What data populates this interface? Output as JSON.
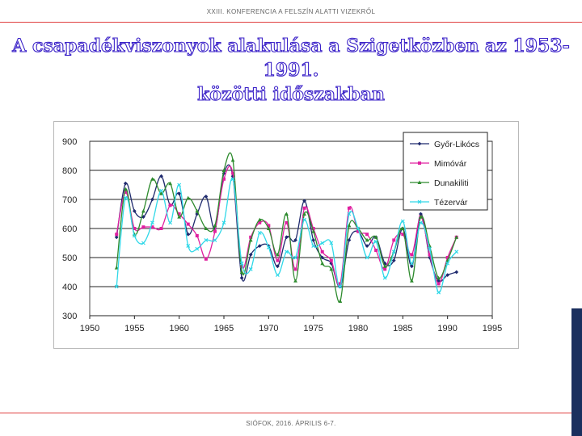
{
  "header": {
    "text": "XXIII. KONFERENCIA A FELSZÍN ALATTI VIZEKRŐL"
  },
  "title": {
    "line1": "A csapadékviszonyok alakulása a Szigetközben az 1953-1991.",
    "line2": "közötti időszakban"
  },
  "footer": {
    "text": "SIÓFOK, 2016. ÁPRILIS 6-7."
  },
  "chart_data": {
    "type": "line",
    "x": [
      1953,
      1954,
      1955,
      1956,
      1957,
      1958,
      1959,
      1960,
      1961,
      1962,
      1963,
      1964,
      1965,
      1966,
      1967,
      1968,
      1969,
      1970,
      1971,
      1972,
      1973,
      1974,
      1975,
      1976,
      1977,
      1978,
      1979,
      1980,
      1981,
      1982,
      1983,
      1984,
      1985,
      1986,
      1987,
      1988,
      1989,
      1990,
      1991
    ],
    "xlim": [
      1950,
      1995
    ],
    "ylim": [
      300,
      900
    ],
    "xticks": [
      1950,
      1955,
      1960,
      1965,
      1970,
      1975,
      1980,
      1985,
      1990,
      1995
    ],
    "yticks": [
      300,
      400,
      500,
      600,
      700,
      800,
      900
    ],
    "grid": "horizontal",
    "legend": "top-right",
    "series": [
      {
        "name": "Győr-Likócs",
        "color": "#1f2a6e",
        "marker": "diamond",
        "values": [
          570,
          755,
          660,
          640,
          700,
          780,
          680,
          720,
          580,
          650,
          710,
          600,
          790,
          780,
          430,
          510,
          540,
          540,
          470,
          570,
          560,
          695,
          560,
          500,
          480,
          400,
          560,
          590,
          540,
          570,
          480,
          490,
          600,
          470,
          650,
          500,
          420,
          440,
          450
        ]
      },
      {
        "name": "Mimóvár",
        "color": "#e020a0",
        "marker": "square",
        "values": [
          580,
          725,
          600,
          605,
          605,
          600,
          680,
          650,
          615,
          575,
          495,
          590,
          770,
          790,
          470,
          570,
          620,
          610,
          490,
          620,
          460,
          670,
          600,
          520,
          490,
          410,
          670,
          590,
          580,
          525,
          460,
          560,
          580,
          510,
          640,
          510,
          410,
          500,
          570
        ]
      },
      {
        "name": "Dunakiliti",
        "color": "#2e8b2e",
        "marker": "triangle",
        "values": [
          465,
          735,
          580,
          660,
          770,
          720,
          755,
          640,
          705,
          660,
          600,
          610,
          800,
          835,
          450,
          560,
          630,
          600,
          510,
          650,
          420,
          650,
          590,
          480,
          460,
          350,
          610,
          600,
          560,
          570,
          470,
          520,
          600,
          420,
          640,
          540,
          430,
          490,
          570
        ]
      },
      {
        "name": "Tézervár",
        "color": "#30d8e8",
        "marker": "x",
        "values": [
          400,
          705,
          575,
          550,
          620,
          730,
          620,
          750,
          540,
          530,
          560,
          560,
          620,
          770,
          480,
          460,
          585,
          535,
          440,
          520,
          500,
          630,
          540,
          550,
          550,
          400,
          650,
          600,
          500,
          555,
          430,
          520,
          625,
          480,
          620,
          530,
          380,
          480,
          520
        ]
      }
    ]
  }
}
